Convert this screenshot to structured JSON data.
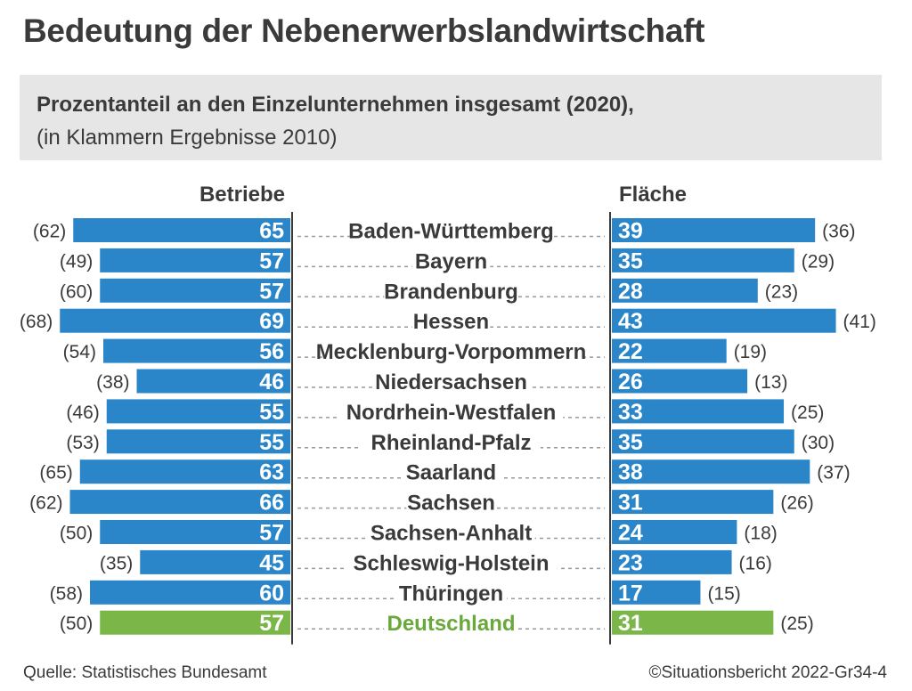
{
  "title": "Bedeutung der Nebenerwerbslandwirtschaft",
  "subtitle": "Prozentanteil an den Einzelunternehmen insgesamt (2020),",
  "subtitle2": "(in Klammern Ergebnisse 2010)",
  "footer": {
    "source": "Quelle: Statistisches Bundesamt",
    "credit": "©Situationsbericht 2022-Gr34-4"
  },
  "colors": {
    "blue": "#2a86c8",
    "green": "#7ab648",
    "green_text": "#6aa83c",
    "separator": "#3a3a3a",
    "dots": "#9a9a9a"
  },
  "chart_data": {
    "type": "bar",
    "orientation": "horizontal-butterfly",
    "categories": [
      "Baden-Württemberg",
      "Bayern",
      "Brandenburg",
      "Hessen",
      "Mecklenburg-Vorpommern",
      "Niedersachsen",
      "Nordrhein-Westfalen",
      "Rheinland-Pfalz",
      "Saarland",
      "Sachsen",
      "Sachsen-Anhalt",
      "Schleswig-Holstein",
      "Thüringen",
      "Deutschland"
    ],
    "highlight": "Deutschland",
    "series": [
      {
        "name": "Betriebe",
        "side": "left",
        "values": [
          65,
          57,
          57,
          69,
          56,
          46,
          55,
          55,
          63,
          66,
          57,
          45,
          60,
          57
        ],
        "values_2010": [
          62,
          49,
          60,
          68,
          54,
          38,
          46,
          53,
          65,
          62,
          50,
          35,
          58,
          50
        ],
        "labels_2010": [
          "(62)",
          "(49)",
          "(60)",
          "(68)",
          "(54)",
          "(38)",
          "(46)",
          "(53)",
          "(65)",
          "(62)",
          "(50)",
          "(35)",
          "(58)",
          "(50)"
        ]
      },
      {
        "name": "Fläche",
        "side": "right",
        "values": [
          39,
          35,
          28,
          43,
          22,
          26,
          33,
          35,
          38,
          31,
          24,
          23,
          17,
          31
        ],
        "values_2010": [
          36,
          29,
          23,
          41,
          19,
          13,
          25,
          30,
          37,
          26,
          18,
          16,
          15,
          25
        ],
        "labels_2010": [
          "(36)",
          "(29)",
          "(23)",
          "(41)",
          "(19)",
          "(13)",
          "(25)",
          "(30)",
          "(37)",
          "(26)",
          "(18)",
          "(16)",
          "(15)",
          "(25)"
        ]
      }
    ]
  }
}
